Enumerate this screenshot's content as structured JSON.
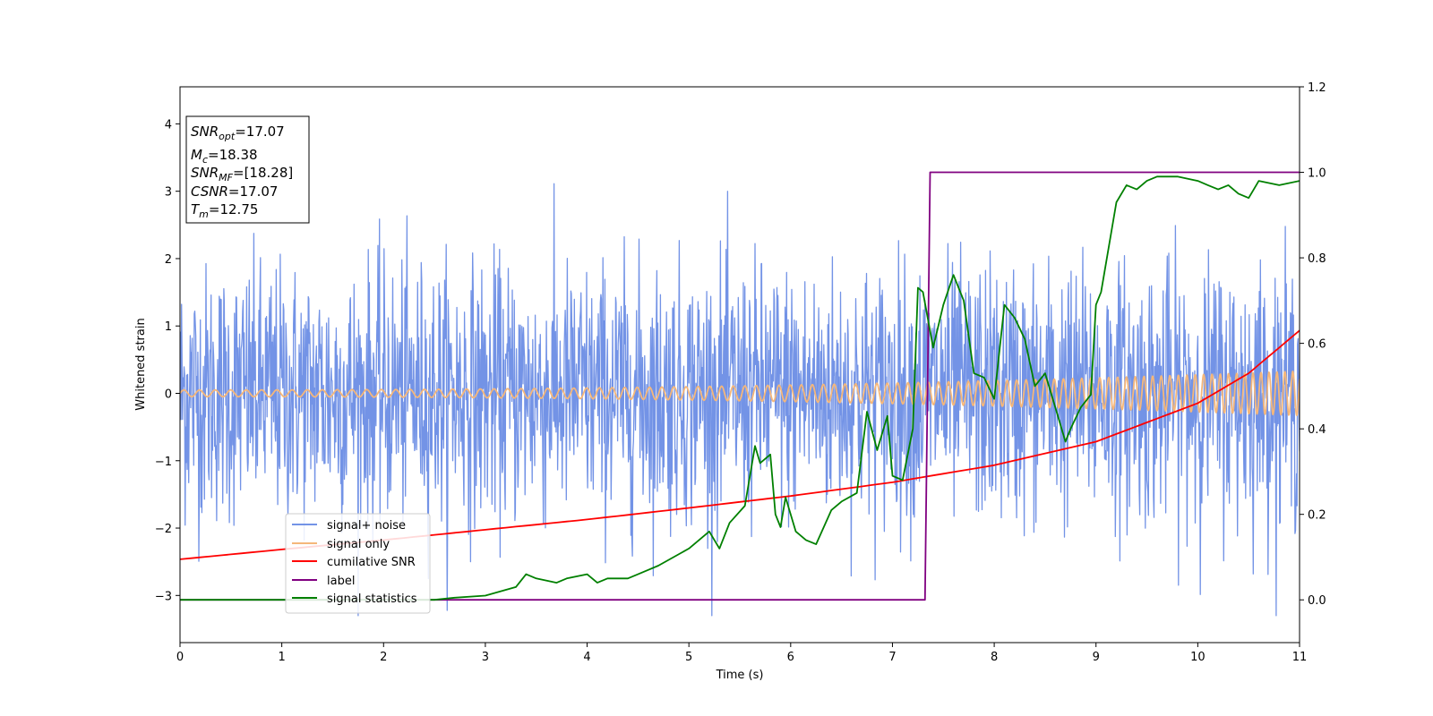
{
  "chart_data": {
    "type": "line",
    "xlabel": "Time (s)",
    "ylabel": "Whitened strain",
    "xlim": [
      0,
      11
    ],
    "ylim": [
      -3.7,
      4.55
    ],
    "y2lim": [
      -0.1,
      1.2
    ],
    "xticks": [
      0,
      1,
      2,
      3,
      4,
      5,
      6,
      7,
      8,
      9,
      10,
      11
    ],
    "yticks": [
      -3,
      -2,
      -1,
      0,
      1,
      2,
      3,
      4
    ],
    "y2ticks": [
      "0.0",
      "0.2",
      "0.4",
      "0.6",
      "0.8",
      "1.0",
      "1.2"
    ],
    "legend_position": "lower-left",
    "legend": [
      "signal+ noise",
      "signal only",
      "cumilative SNR",
      "label",
      "signal statistics"
    ],
    "annotation": {
      "snr_opt": {
        "base": "SNR",
        "sub": "opt",
        "value": "=17.07"
      },
      "mc": {
        "base": "M",
        "sub": "c",
        "value": "=18.38"
      },
      "snr_mf": {
        "base": "SNR",
        "sub": "MF",
        "value": "=[18.28]"
      },
      "csnr": {
        "base": "CSNR",
        "sub": "",
        "value": "=17.07"
      },
      "tm": {
        "base": "T",
        "sub": "m",
        "value": "=12.75"
      }
    },
    "series": [
      {
        "name": "signal+ noise",
        "axis": "left",
        "color": "#7393e6",
        "kind": "noise",
        "std": 0.95,
        "x_range": [
          0,
          11
        ],
        "samples": 2200
      },
      {
        "name": "signal only",
        "axis": "left",
        "color": "#f5b77a",
        "kind": "chirp",
        "x_range": [
          0,
          11
        ],
        "amplitude_start": 0.05,
        "amplitude_end": 0.33,
        "freq_start": 6.5,
        "freq_end": 13
      },
      {
        "name": "cumilative SNR",
        "axis": "right",
        "color": "#ff0000",
        "x": [
          0,
          1,
          2,
          3,
          4,
          5,
          6,
          7,
          8,
          9,
          10,
          10.5,
          11
        ],
        "y": [
          0.095,
          0.118,
          0.14,
          0.164,
          0.188,
          0.215,
          0.243,
          0.275,
          0.315,
          0.37,
          0.46,
          0.53,
          0.63
        ]
      },
      {
        "name": "label",
        "axis": "right",
        "color": "#800080",
        "x": [
          0,
          7.32,
          7.37,
          11
        ],
        "y": [
          0,
          0,
          1,
          1
        ]
      },
      {
        "name": "signal statistics",
        "axis": "right",
        "color": "#008000",
        "x": [
          0,
          0.5,
          1,
          1.5,
          2,
          2.5,
          2.7,
          3.0,
          3.3,
          3.4,
          3.5,
          3.7,
          3.8,
          4.0,
          4.1,
          4.2,
          4.4,
          4.5,
          4.7,
          5.0,
          5.2,
          5.3,
          5.4,
          5.55,
          5.65,
          5.7,
          5.8,
          5.85,
          5.9,
          5.95,
          6.05,
          6.15,
          6.25,
          6.4,
          6.5,
          6.65,
          6.75,
          6.85,
          6.95,
          7.0,
          7.1,
          7.2,
          7.25,
          7.3,
          7.4,
          7.5,
          7.6,
          7.7,
          7.8,
          7.9,
          8.0,
          8.1,
          8.2,
          8.3,
          8.4,
          8.5,
          8.6,
          8.7,
          8.75,
          8.85,
          8.95,
          9.0,
          9.05,
          9.2,
          9.3,
          9.4,
          9.5,
          9.6,
          9.8,
          10.0,
          10.1,
          10.2,
          10.3,
          10.4,
          10.5,
          10.6,
          10.8,
          11.0
        ],
        "y": [
          0,
          0,
          0,
          0,
          0,
          0,
          0.005,
          0.01,
          0.03,
          0.06,
          0.05,
          0.04,
          0.05,
          0.06,
          0.04,
          0.05,
          0.05,
          0.06,
          0.08,
          0.12,
          0.16,
          0.12,
          0.18,
          0.22,
          0.36,
          0.32,
          0.34,
          0.2,
          0.17,
          0.24,
          0.16,
          0.14,
          0.13,
          0.21,
          0.23,
          0.25,
          0.44,
          0.35,
          0.43,
          0.29,
          0.28,
          0.4,
          0.73,
          0.72,
          0.59,
          0.69,
          0.76,
          0.7,
          0.53,
          0.52,
          0.47,
          0.69,
          0.66,
          0.61,
          0.5,
          0.53,
          0.45,
          0.37,
          0.4,
          0.45,
          0.48,
          0.69,
          0.72,
          0.93,
          0.97,
          0.96,
          0.98,
          0.99,
          0.99,
          0.98,
          0.97,
          0.96,
          0.97,
          0.95,
          0.94,
          0.98,
          0.97,
          0.98
        ]
      }
    ]
  }
}
